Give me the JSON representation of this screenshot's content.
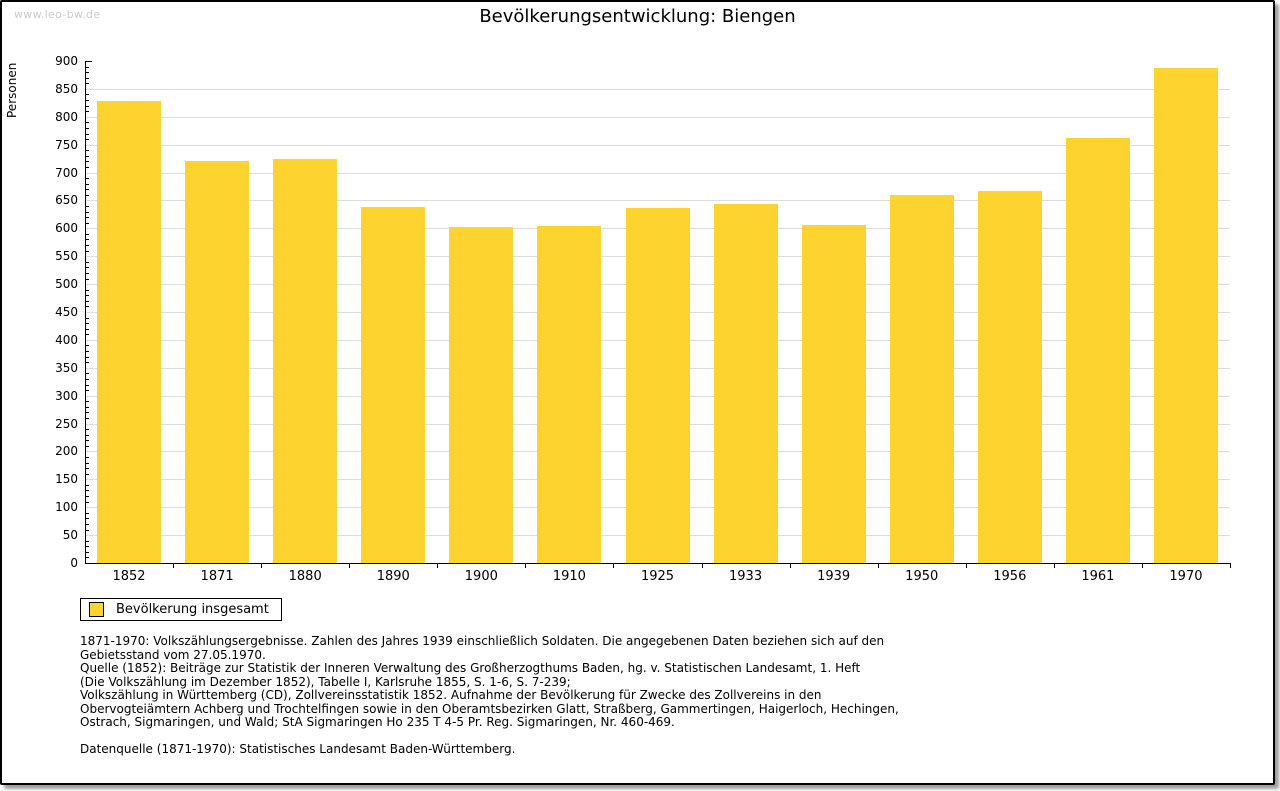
{
  "watermark": "www.leo-bw.de",
  "title": "Bevölkerungsentwicklung: Biengen",
  "chart_data": {
    "type": "bar",
    "title": "Bevölkerungsentwicklung: Biengen",
    "categories": [
      "1852",
      "1871",
      "1880",
      "1890",
      "1900",
      "1910",
      "1925",
      "1933",
      "1939",
      "1950",
      "1956",
      "1961",
      "1970"
    ],
    "values": [
      828,
      720,
      724,
      638,
      602,
      604,
      637,
      644,
      606,
      659,
      667,
      762,
      887
    ],
    "series_name": "Bevölkerung insgesamt",
    "xlabel": "",
    "ylabel": "Personen",
    "ylim": [
      0,
      900
    ],
    "ytick_step": 50,
    "y_minor_tick_step": 10,
    "grid": true,
    "legend_position": "bottom-left",
    "bar_color": "#FCD32F",
    "gridline_color": "#dddddd"
  },
  "legend": {
    "label": "Bevölkerung insgesamt"
  },
  "footnotes": {
    "p1": [
      "1871-1970: Volkszählungsergebnisse. Zahlen des Jahres 1939 einschließlich Soldaten. Die angegebenen Daten beziehen sich auf den",
      "Gebietsstand vom 27.05.1970.",
      "Quelle (1852): Beiträge zur Statistik der Inneren Verwaltung des Großherzogthums Baden, hg. v. Statistischen Landesamt, 1. Heft",
      "(Die Volkszählung im Dezember 1852), Tabelle I, Karlsruhe 1855, S. 1-6, S. 7-239;",
      "Volkszählung in Württemberg (CD), Zollvereinsstatistik 1852. Aufnahme der Bevölkerung für Zwecke des Zollvereins in den",
      "Obervogteiämtern Achberg und Trochtelfingen sowie in den Oberamtsbezirken Glatt, Straßberg, Gammertingen, Haigerloch, Hechingen,",
      "Ostrach, Sigmaringen, und Wald; StA Sigmaringen Ho 235 T 4-5 Pr. Reg. Sigmaringen, Nr. 460-469."
    ],
    "p2": "Datenquelle (1871-1970): Statistisches Landesamt Baden-Württemberg."
  }
}
